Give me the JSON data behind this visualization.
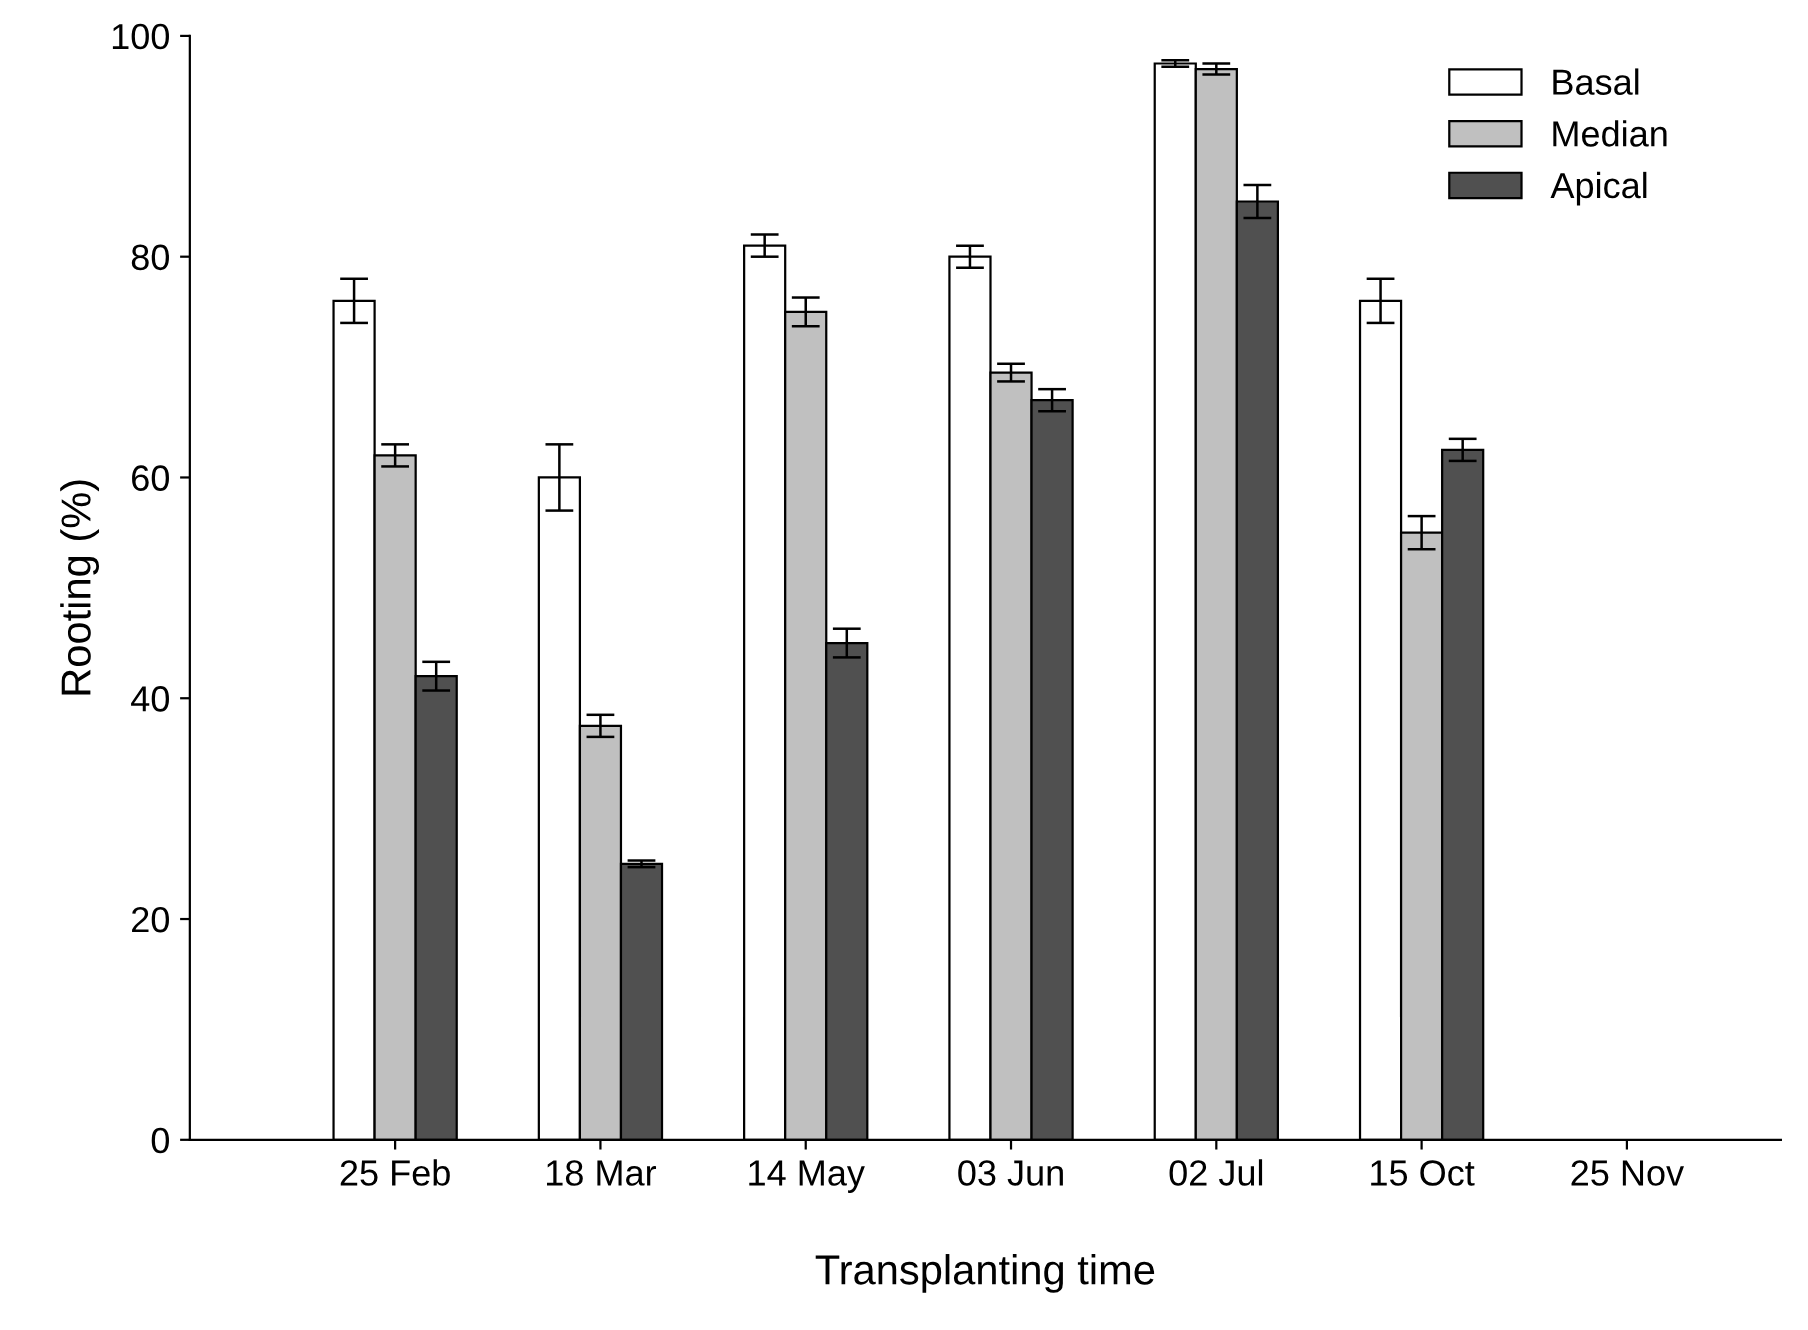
{
  "chart_data": {
    "type": "bar",
    "xlabel": "Transplanting time",
    "ylabel": "Rooting (%)",
    "categories": [
      "25 Feb",
      "18 Mar",
      "14 May",
      "03 Jun",
      "02 Jul",
      "15 Oct",
      "25 Nov"
    ],
    "series": [
      {
        "name": "Basal",
        "color": "#ffffff",
        "values": [
          76,
          60,
          81,
          80,
          97.5,
          76,
          null
        ],
        "errors": [
          2,
          3,
          1,
          1,
          0.3,
          2,
          null
        ]
      },
      {
        "name": "Median",
        "color": "#c0c0c0",
        "values": [
          62,
          37.5,
          75,
          69.5,
          97,
          55,
          null
        ],
        "errors": [
          1,
          1,
          1.3,
          0.8,
          0.5,
          1.5,
          null
        ]
      },
      {
        "name": "Apical",
        "color": "#505050",
        "values": [
          42,
          25,
          45,
          67,
          85,
          62.5,
          null
        ],
        "errors": [
          1.3,
          0.3,
          1.3,
          1,
          1.5,
          1,
          null
        ]
      }
    ],
    "ylim": [
      0,
      100
    ],
    "yticks": [
      0,
      20,
      40,
      60,
      80,
      100
    ],
    "grid": false,
    "legend": "top right"
  }
}
